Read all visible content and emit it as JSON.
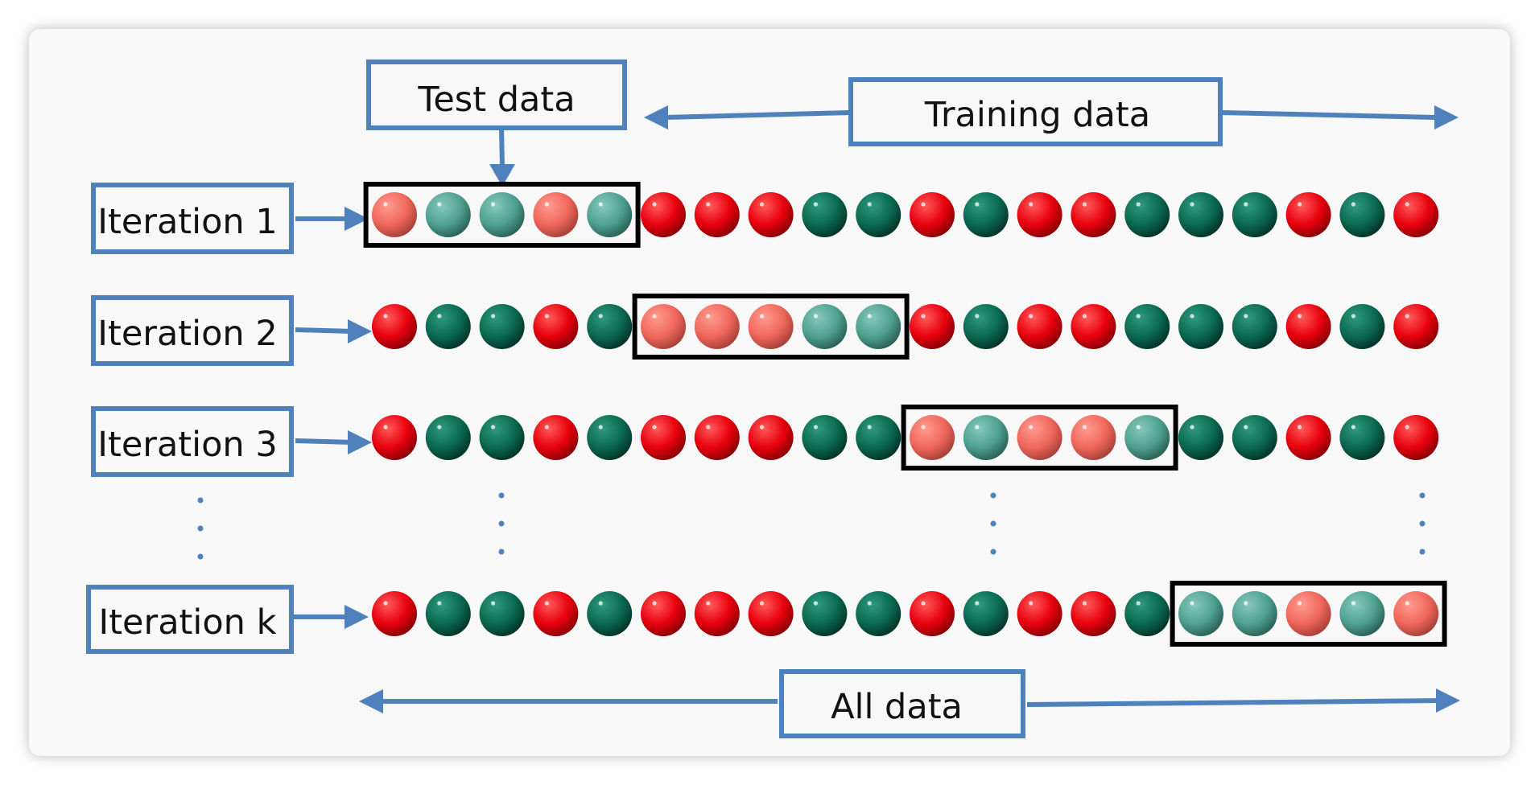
{
  "labels": {
    "test_data": "Test data",
    "training_data": "Training data",
    "all_data": "All data"
  },
  "iterations": [
    {
      "label": "Iteration 1",
      "test_start": 0
    },
    {
      "label": "Iteration 2",
      "test_start": 5
    },
    {
      "label": "Iteration 3",
      "test_start": 10
    },
    {
      "label": "Iteration k",
      "test_start": 15
    }
  ],
  "fold_size": 5,
  "ball_classes": [
    "red",
    "green",
    "green",
    "red",
    "green",
    "red",
    "red",
    "red",
    "green",
    "green",
    "red",
    "green",
    "red",
    "red",
    "green",
    "green",
    "green",
    "red",
    "green",
    "red"
  ],
  "colors": {
    "accent": "#4f81bd",
    "red_ball": "#e8000c",
    "green_ball": "#0b6a52",
    "red_test": "#f0675b",
    "green_test": "#4fa191",
    "test_box": "#000000",
    "background": "#f8f8f8"
  }
}
